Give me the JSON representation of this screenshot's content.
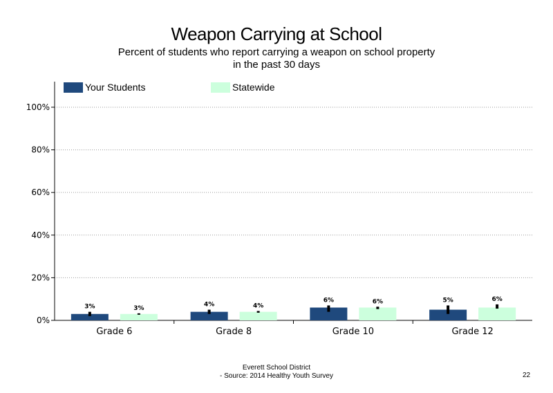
{
  "slide": {
    "title": "Weapon Carrying at School",
    "subtitle": "Percent of students  who report carrying a weapon  on school property in the past 30 days",
    "footer_line1": "Everett School District",
    "footer_line2": "- Source: 2014 Healthy  Youth Survey",
    "page_number": "22"
  },
  "colors": {
    "your_students": "#1f497d",
    "statewide": "#ccffdd",
    "error_bar": "#000000",
    "grid": "#999999"
  },
  "chart_data": {
    "type": "bar",
    "title": "Weapon Carrying at School",
    "categories": [
      "Grade 6",
      "Grade 8",
      "Grade 10",
      "Grade 12"
    ],
    "series": [
      {
        "name": "Your Students",
        "values": [
          3,
          4,
          6,
          5
        ],
        "labels": [
          "3%",
          "4%",
          "6%",
          "5%"
        ],
        "error_low": [
          2,
          3,
          4,
          3
        ],
        "error_high": [
          4,
          5,
          7,
          7
        ]
      },
      {
        "name": "Statewide",
        "values": [
          3,
          4,
          6,
          6
        ],
        "labels": [
          "3%",
          "4%",
          "6%",
          "6%"
        ],
        "error_low": [
          2.7,
          3.6,
          5.3,
          5.5
        ],
        "error_high": [
          3.3,
          4.4,
          6.4,
          7.5
        ]
      }
    ],
    "ylim": [
      0,
      112
    ],
    "yticks": [
      0,
      20,
      40,
      60,
      80,
      100
    ],
    "ytick_labels": [
      "0%",
      "20%",
      "40%",
      "60%",
      "80%",
      "100%"
    ],
    "grid": true,
    "legend": "top"
  }
}
